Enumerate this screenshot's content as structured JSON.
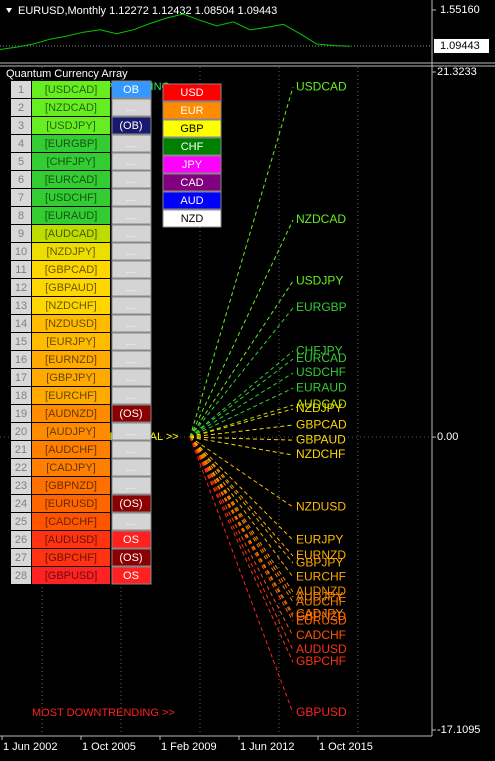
{
  "price_chart": {
    "type": "line",
    "header": "EURUSD,Monthly  1.12272 1.12432 1.08504 1.09443",
    "color": "#00c800",
    "values": [
      1.05,
      1.08,
      1.12,
      1.18,
      1.22,
      1.27,
      1.3,
      1.25,
      1.3,
      1.38,
      1.45,
      1.5,
      1.42,
      1.35,
      1.4,
      1.3,
      1.33,
      1.37,
      1.25,
      1.12,
      1.1,
      1.09
    ],
    "ylim": [
      0.891,
      1.653
    ],
    "yticks": [
      {
        "value": 1.5516,
        "label": "1.55160"
      }
    ],
    "last_price": {
      "value": 1.09443,
      "label": "1.09443"
    }
  },
  "indicator": {
    "title": "Quantum Currency Array",
    "ylim": [
      -17.1095,
      21.3233
    ],
    "yticks": [
      21.3233,
      {
        "value": 0,
        "label": "0.00"
      },
      -17.1095
    ],
    "top_note": "MOST UPTRENDING >>",
    "zero_note": "HORIZONTAL >>",
    "bottom_note": "MOST DOWNTRENDING >>",
    "rows": [
      {
        "rank": 1,
        "label": "[USDCAD]",
        "name": "USDCAD",
        "status": "OB",
        "color": "#66ee22",
        "status_color": "#3399ff",
        "value": 20.44
      },
      {
        "rank": 2,
        "label": "[NZDCAD]",
        "name": "NZDCAD",
        "status": "...",
        "color": "#66ee22",
        "status_color": "#d4d4d4",
        "value": 12.68
      },
      {
        "rank": 3,
        "label": "[USDJPY]",
        "name": "USDJPY",
        "status": "(OB)",
        "color": "#66ee22",
        "status_color": "#191970",
        "value": 9.11
      },
      {
        "rank": 4,
        "label": "[EURGBP]",
        "name": "EURGBP",
        "status": "...",
        "color": "#33cc33",
        "status_color": "#d4d4d4",
        "value": 7.54
      },
      {
        "rank": 5,
        "label": "[CHFJPY]",
        "name": "CHFJPY",
        "status": "...",
        "color": "#33cc33",
        "status_color": "#d4d4d4",
        "value": 5.02
      },
      {
        "rank": 6,
        "label": "[EURCAD]",
        "name": "EURCAD",
        "status": "...",
        "color": "#33cc33",
        "status_color": "#d4d4d4",
        "value": 4.56
      },
      {
        "rank": 7,
        "label": "[USDCHF]",
        "name": "USDCHF",
        "status": "...",
        "color": "#33cc33",
        "status_color": "#d4d4d4",
        "value": 3.74
      },
      {
        "rank": 8,
        "label": "[EURAUD]",
        "name": "EURAUD",
        "status": "...",
        "color": "#33cc33",
        "status_color": "#d4d4d4",
        "value": 2.86
      },
      {
        "rank": 9,
        "label": "[AUDCAD]",
        "name": "AUDCAD",
        "status": "...",
        "color": "#bbdd00",
        "status_color": "#d4d4d4",
        "value": 1.87
      },
      {
        "rank": 10,
        "label": "[NZDJPY]",
        "name": "NZDJPY",
        "status": "...",
        "color": "#eedd00",
        "status_color": "#d4d4d4",
        "value": 1.64
      },
      {
        "rank": 11,
        "label": "[GBPCAD]",
        "name": "GBPCAD",
        "status": "...",
        "color": "#ffd700",
        "status_color": "#d4d4d4",
        "value": 0.7
      },
      {
        "rank": 12,
        "label": "[GBPAUD]",
        "name": "GBPAUD",
        "status": "...",
        "color": "#ffd700",
        "status_color": "#d4d4d4",
        "value": -0.18
      },
      {
        "rank": 13,
        "label": "[NZDCHF]",
        "name": "NZDCHF",
        "status": "...",
        "color": "#ffd700",
        "status_color": "#d4d4d4",
        "value": -1.05
      },
      {
        "rank": 14,
        "label": "[NZDUSD]",
        "name": "NZDUSD",
        "status": "...",
        "color": "#ffbb00",
        "status_color": "#d4d4d4",
        "value": -4.09
      },
      {
        "rank": 15,
        "label": "[EURJPY]",
        "name": "EURJPY",
        "status": "...",
        "color": "#ffbb00",
        "status_color": "#d4d4d4",
        "value": -6.02
      },
      {
        "rank": 16,
        "label": "[EURNZD]",
        "name": "EURNZD",
        "status": "...",
        "color": "#ffaa00",
        "status_color": "#d4d4d4",
        "value": -6.95
      },
      {
        "rank": 17,
        "label": "[GBPJPY]",
        "name": "GBPJPY",
        "status": "...",
        "color": "#ffaa00",
        "status_color": "#d4d4d4",
        "value": -7.36
      },
      {
        "rank": 18,
        "label": "[EURCHF]",
        "name": "EURCHF",
        "status": "...",
        "color": "#ffaa00",
        "status_color": "#d4d4d4",
        "value": -8.18
      },
      {
        "rank": 19,
        "label": "[AUDNZD]",
        "name": "AUDNZD",
        "status": "(OS)",
        "color": "#ff8c00",
        "status_color": "#8b0000",
        "value": -9.05
      },
      {
        "rank": 20,
        "label": "[AUDJPY]",
        "name": "AUDJPY",
        "status": "...",
        "color": "#ff8c00",
        "status_color": "#d4d4d4",
        "value": -9.35
      },
      {
        "rank": 21,
        "label": "[AUDCHF]",
        "name": "AUDCHF",
        "status": "...",
        "color": "#ff8000",
        "status_color": "#d4d4d4",
        "value": -9.64
      },
      {
        "rank": 22,
        "label": "[CADJPY]",
        "name": "CADJPY",
        "status": "...",
        "color": "#ff8000",
        "status_color": "#d4d4d4",
        "value": -10.34
      },
      {
        "rank": 23,
        "label": "[GBPNZD]",
        "name": "GBPNZD",
        "status": "...",
        "color": "#ff7000",
        "status_color": "#d4d4d4",
        "value": -10.5
      },
      {
        "rank": 24,
        "label": "[EURUSD]",
        "name": "EURUSD",
        "status": "(OS)",
        "color": "#ff6600",
        "status_color": "#8b0000",
        "value": -10.75
      },
      {
        "rank": 25,
        "label": "[CADCHF]",
        "name": "CADCHF",
        "status": "...",
        "color": "#ff5500",
        "status_color": "#d4d4d4",
        "value": -11.62
      },
      {
        "rank": 26,
        "label": "[AUDUSD]",
        "name": "AUDUSD",
        "status": "OS",
        "color": "#ff3311",
        "status_color": "#ff2020",
        "value": -12.44
      },
      {
        "rank": 27,
        "label": "[GBPCHF]",
        "name": "GBPCHF",
        "status": "(OS)",
        "color": "#ff3311",
        "status_color": "#8b0000",
        "value": -13.14
      },
      {
        "rank": 28,
        "label": "[GBPUSD]",
        "name": "GBPUSD",
        "status": "OS",
        "color": "#ff2222",
        "status_color": "#ff2020",
        "value": -16.12
      }
    ]
  },
  "legend": [
    {
      "name": "USD",
      "color": "#ff0000",
      "text_color": "#ffffff"
    },
    {
      "name": "EUR",
      "color": "#ff8c00",
      "text_color": "#ffffff"
    },
    {
      "name": "GBP",
      "color": "#ffff00",
      "text_color": "#000000"
    },
    {
      "name": "CHF",
      "color": "#008000",
      "text_color": "#ffffff"
    },
    {
      "name": "JPY",
      "color": "#ff00ff",
      "text_color": "#ffffff"
    },
    {
      "name": "CAD",
      "color": "#800080",
      "text_color": "#ffffff"
    },
    {
      "name": "AUD",
      "color": "#0000ff",
      "text_color": "#ffffff"
    },
    {
      "name": "NZD",
      "color": "#ffffff",
      "text_color": "#000000"
    }
  ],
  "xlabels": [
    "1 Jun 2002",
    "1 Oct 2005",
    "1 Feb 2009",
    "1 Jun 2012",
    "1 Oct 2015"
  ]
}
